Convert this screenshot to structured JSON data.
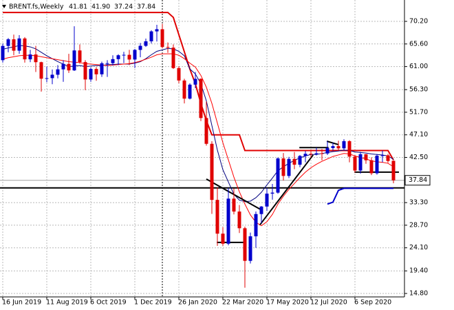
{
  "chart_data": {
    "type": "candlestick",
    "title": "BRENT.fs,Weekly",
    "ohlc_labels": [
      "41.81",
      "41.90",
      "37.24",
      "37.84"
    ],
    "categories": [
      "16 Jun 2019",
      null,
      null,
      null,
      null,
      null,
      null,
      null,
      "11 Aug 2019",
      null,
      null,
      null,
      null,
      null,
      null,
      null,
      "6 Oct 2019",
      null,
      null,
      null,
      null,
      null,
      null,
      null,
      "1 Dec 2019",
      null,
      null,
      null,
      null,
      null,
      null,
      null,
      "26 Jan 2020",
      null,
      null,
      null,
      null,
      null,
      null,
      null,
      "22 Mar 2020",
      null,
      null,
      null,
      null,
      null,
      null,
      null,
      "17 May 2020",
      null,
      null,
      null,
      null,
      null,
      null,
      null,
      "12 Jul 2020",
      null,
      null,
      null,
      null,
      null,
      null,
      null,
      "6 Sep 2020",
      null,
      null,
      null,
      null,
      null,
      null,
      null
    ],
    "open": [
      62.3,
      65.2,
      66.55,
      64.23,
      66.72,
      62.47,
      63.46,
      61.89,
      58.53,
      58.64,
      59.34,
      60.43,
      61.54,
      60.22,
      64.28,
      61.91,
      58.37,
      60.51,
      59.42,
      61.67,
      61.69,
      62.51,
      63.3,
      63.39,
      62.43,
      64.39,
      65.22,
      66.14,
      68.16,
      68.6,
      64.98,
      64.85,
      60.69,
      58.16,
      54.47,
      57.32,
      58.5,
      50.52,
      45.27,
      33.85,
      26.98,
      24.93,
      34.11,
      31.48,
      28.08,
      21.44,
      26.44,
      30.97,
      32.5,
      35.13,
      35.33,
      42.3,
      38.73,
      42.19,
      41.02,
      42.8,
      43.24,
      43.14,
      43.34,
      43.3,
      44.4,
      44.8,
      44.35,
      45.81,
      42.66,
      39.83,
      43.15,
      41.92,
      39.27,
      42.85,
      42.93,
      41.81
    ],
    "high": [
      65.7,
      66.8,
      67.5,
      67.4,
      67.0,
      64.4,
      65.2,
      62.0,
      61.0,
      60.4,
      61.3,
      62.3,
      63.6,
      69.2,
      65.5,
      62.3,
      60.8,
      60.9,
      62.0,
      62.3,
      63.3,
      63.5,
      64.0,
      64.4,
      64.6,
      65.8,
      66.7,
      68.4,
      69.5,
      69.7,
      65.9,
      65.5,
      61.1,
      58.5,
      57.6,
      59.9,
      58.6,
      53.9,
      45.8,
      36.4,
      28.3,
      36.3,
      36.2,
      32.8,
      28.4,
      27.2,
      31.5,
      32.6,
      36.3,
      37.1,
      42.5,
      43.4,
      42.6,
      43.6,
      43.0,
      43.8,
      44.0,
      44.5,
      44.2,
      45.8,
      45.5,
      45.9,
      46.2,
      46.0,
      43.0,
      43.6,
      43.2,
      42.5,
      43.2,
      43.9,
      43.2,
      41.9
    ],
    "low": [
      61.8,
      63.9,
      63.3,
      63.6,
      61.8,
      61.9,
      59.9,
      55.9,
      57.8,
      57.4,
      58.6,
      57.9,
      59.7,
      60.1,
      61.6,
      56.2,
      57.9,
      58.1,
      58.9,
      58.9,
      61.2,
      61.3,
      61.7,
      61.3,
      60.7,
      62.9,
      65.0,
      65.7,
      66.1,
      64.7,
      63.8,
      60.5,
      57.6,
      53.5,
      54.3,
      56.6,
      49.9,
      44.9,
      31.0,
      24.5,
      24.5,
      24.6,
      30.9,
      27.1,
      15.98,
      20.9,
      24.1,
      29.1,
      31.6,
      33.9,
      35.1,
      37.8,
      38.3,
      40.1,
      40.5,
      41.5,
      42.5,
      42.9,
      41.9,
      43.0,
      43.9,
      44.0,
      43.9,
      41.5,
      39.4,
      39.2,
      41.2,
      38.9,
      39.0,
      41.5,
      41.4,
      37.24
    ],
    "close": [
      65.2,
      66.55,
      64.23,
      66.72,
      62.47,
      63.46,
      61.89,
      58.53,
      58.64,
      59.34,
      60.43,
      61.54,
      60.22,
      64.28,
      61.91,
      58.37,
      60.51,
      59.42,
      61.67,
      61.69,
      62.51,
      63.3,
      63.39,
      62.43,
      64.39,
      65.22,
      66.14,
      68.16,
      68.6,
      64.98,
      64.85,
      60.69,
      58.16,
      54.47,
      57.32,
      58.5,
      50.52,
      45.27,
      33.85,
      26.98,
      24.93,
      34.11,
      31.48,
      28.08,
      21.44,
      26.44,
      30.97,
      32.5,
      35.13,
      35.33,
      42.3,
      38.73,
      42.19,
      41.02,
      42.8,
      43.24,
      43.14,
      43.34,
      43.3,
      44.4,
      44.8,
      44.35,
      45.81,
      42.66,
      39.83,
      43.15,
      41.92,
      39.27,
      42.85,
      42.93,
      41.77,
      37.84
    ],
    "up_color": "#0000cc",
    "down_color": "#e00000",
    "series": [
      {
        "color": "#e00000",
        "width": 2,
        "values": [
          72.0,
          72.0,
          72.0,
          72.0,
          72.0,
          72.0,
          72.0,
          72.0,
          72.0,
          72.0,
          72.0,
          72.0,
          72.0,
          72.0,
          72.0,
          72.0,
          72.0,
          72.0,
          72.0,
          72.0,
          72.0,
          72.0,
          72.0,
          72.0,
          72.0,
          72.0,
          72.0,
          72.0,
          72.0,
          72.0,
          72.0,
          71.0,
          67.5,
          64.0,
          60.5,
          57.5,
          53.5,
          50.0,
          47.1,
          47.1,
          47.1,
          47.1,
          47.1,
          47.1,
          43.9,
          43.9,
          43.9,
          43.9,
          43.9,
          43.9,
          43.9,
          43.9,
          43.9,
          43.9,
          43.9,
          43.9,
          43.9,
          43.9,
          43.9,
          43.9,
          43.9,
          43.9,
          43.9,
          43.9,
          43.9,
          43.9,
          43.9,
          43.9,
          43.9,
          43.9,
          43.9,
          42.0
        ]
      },
      {
        "color": "#000080",
        "width": 1,
        "values": [
          64.5,
          64.8,
          65.0,
          65.3,
          65.2,
          65.0,
          64.6,
          63.9,
          63.2,
          62.6,
          62.0,
          61.5,
          61.0,
          61.1,
          61.2,
          61.0,
          61.1,
          61.2,
          61.2,
          61.4,
          61.4,
          61.5,
          61.5,
          61.5,
          61.7,
          62.0,
          62.6,
          63.4,
          64.1,
          64.4,
          64.7,
          64.6,
          64.1,
          63.2,
          60.5,
          59.5,
          57.5,
          54.0,
          49.0,
          44.0,
          40.0,
          37.5,
          35.0,
          33.8,
          33.5,
          33.6,
          34.3,
          35.4,
          36.9,
          38.3,
          39.8,
          40.6,
          41.3,
          41.9,
          42.4,
          42.8,
          43.1,
          43.1,
          43.3,
          43.5,
          43.7,
          43.8,
          44.0,
          43.9,
          43.6,
          43.5,
          43.4,
          43.2,
          43.1,
          43.0,
          42.8,
          42.1
        ]
      },
      {
        "color": "#ff0000",
        "width": 1,
        "values": [
          62.5,
          62.8,
          63.0,
          63.2,
          63.3,
          63.3,
          63.2,
          63.0,
          62.8,
          62.6,
          62.4,
          62.2,
          62.0,
          61.9,
          61.8,
          61.6,
          61.5,
          61.4,
          61.3,
          61.2,
          61.3,
          61.4,
          61.5,
          61.6,
          61.8,
          62.1,
          62.5,
          62.9,
          63.4,
          63.6,
          63.6,
          63.6,
          63.3,
          62.6,
          61.7,
          60.9,
          59.2,
          56.8,
          53.5,
          49.5,
          45.5,
          42.0,
          38.5,
          35.5,
          33.0,
          30.8,
          29.3,
          28.6,
          29.4,
          30.9,
          33.0,
          34.6,
          36.0,
          37.2,
          38.4,
          39.5,
          40.4,
          41.1,
          41.7,
          42.2,
          42.7,
          43.0,
          43.3,
          43.2,
          42.8,
          42.5,
          42.2,
          41.8,
          41.6,
          41.5,
          41.3,
          40.6
        ]
      },
      {
        "color": "#0000cc",
        "width": 2,
        "values": [
          null,
          null,
          null,
          null,
          null,
          null,
          null,
          null,
          null,
          null,
          null,
          null,
          null,
          null,
          null,
          null,
          null,
          null,
          null,
          null,
          null,
          null,
          null,
          null,
          null,
          null,
          null,
          null,
          null,
          null,
          null,
          null,
          null,
          null,
          null,
          null,
          null,
          null,
          null,
          null,
          null,
          null,
          null,
          null,
          null,
          null,
          null,
          null,
          null,
          null,
          null,
          null,
          null,
          null,
          null,
          null,
          null,
          null,
          null,
          33.0,
          33.4,
          35.8,
          36.2,
          36.2,
          36.2,
          36.2,
          36.2,
          36.2,
          36.2,
          36.2,
          36.2,
          36.2
        ]
      }
    ],
    "levels": [
      {
        "value": 36.3,
        "color": "#000000",
        "width": 2
      },
      {
        "value": 37.84,
        "color": "#a0a0a0",
        "width": 1
      }
    ],
    "trendlines": [
      [
        [
          37,
          38.1
        ],
        [
          47,
          31.8
        ]
      ],
      [
        [
          46.75,
          28.8
        ],
        [
          56.4,
          43.0
        ]
      ],
      [
        [
          38.9,
          25.2
        ],
        [
          43.9,
          25.2
        ]
      ],
      [
        [
          53.9,
          44.5
        ],
        [
          59.2,
          44.5
        ]
      ],
      [
        [
          63.9,
          39.5
        ],
        [
          72,
          39.5
        ]
      ],
      [
        [
          58.9,
          45.8
        ],
        [
          61,
          45.1
        ]
      ]
    ],
    "last_price": {
      "value": 37.84,
      "label": "37.84"
    },
    "ylim": [
      14.1,
      74.55
    ],
    "yticks": [
      {
        "value": 70.2,
        "label": "70.20"
      },
      {
        "value": 65.6,
        "label": "65.60"
      },
      {
        "value": 61.0,
        "label": "61.00"
      },
      {
        "value": 56.3,
        "label": "56.30"
      },
      {
        "value": 51.7,
        "label": "51.70"
      },
      {
        "value": 47.1,
        "label": "47.10"
      },
      {
        "value": 42.5,
        "label": "42.50"
      },
      {
        "value": 33.3,
        "label": "33.30"
      },
      {
        "value": 28.7,
        "label": "28.70"
      },
      {
        "value": 24.1,
        "label": "24.10"
      },
      {
        "value": 19.4,
        "label": "19.40"
      },
      {
        "value": 14.8,
        "label": "14.80"
      }
    ],
    "grid": true
  }
}
